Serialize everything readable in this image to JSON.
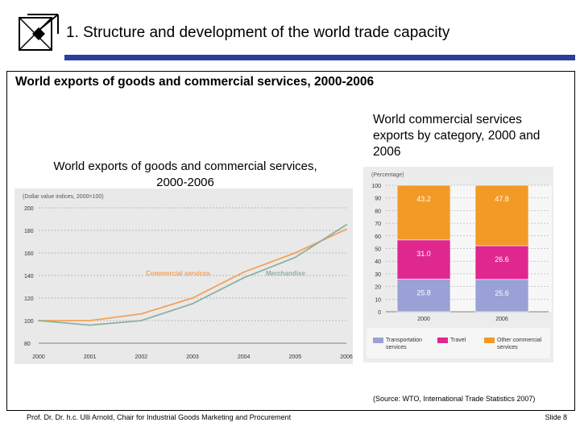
{
  "slide": {
    "title": "1. Structure and development of the world trade capacity",
    "heading": "World exports of goods and commercial services, 2000-2006",
    "source": "(Source: WTO, International Trade Statistics 2007)",
    "footer_left": "Prof. Dr. Dr. h.c. Ulli Arnold, Chair for Industrial Goods Marketing and Procurement",
    "footer_right": "Slide 8"
  },
  "colors": {
    "title_rule": "#2a3ea0",
    "commercial": "#f4a15a",
    "merchandise": "#8fb09e",
    "transport": "#9aa1d6",
    "travel": "#e0278f",
    "other": "#f39a26"
  },
  "chart_data": [
    {
      "type": "line",
      "title": "World exports of goods and commercial services, 2000-2006",
      "subtitle": "(Dollar value indices, 2000=100)",
      "x": [
        "2000",
        "2001",
        "2002",
        "2003",
        "2004",
        "2005",
        "2006"
      ],
      "y_ticks": [
        80,
        100,
        120,
        140,
        160,
        180,
        200
      ],
      "ylim": [
        80,
        200
      ],
      "grid": true,
      "series": [
        {
          "name": "Commercial services",
          "values": [
            100,
            100,
            106,
            120,
            143,
            160,
            181
          ]
        },
        {
          "name": "Merchandise",
          "values": [
            100,
            96,
            100,
            115,
            138,
            156,
            185
          ]
        }
      ]
    },
    {
      "type": "bar",
      "stacked": true,
      "title": "World commercial services exports by category, 2000 and 2006",
      "subtitle": "(Percentage)",
      "categories": [
        "2000",
        "2006"
      ],
      "y_ticks": [
        0,
        10,
        20,
        30,
        40,
        50,
        60,
        70,
        80,
        90,
        100
      ],
      "ylim": [
        0,
        100
      ],
      "legend_position": "bottom",
      "series": [
        {
          "name": "Transportation services",
          "values": [
            25.8,
            25.6
          ],
          "labels": [
            "25.8",
            "25.6"
          ]
        },
        {
          "name": "Travel",
          "values": [
            31.0,
            26.6
          ],
          "labels": [
            "31.0",
            "26.6"
          ]
        },
        {
          "name": "Other commercial services",
          "values": [
            43.2,
            47.8
          ],
          "labels": [
            "43.2",
            "47.8"
          ]
        }
      ]
    }
  ]
}
